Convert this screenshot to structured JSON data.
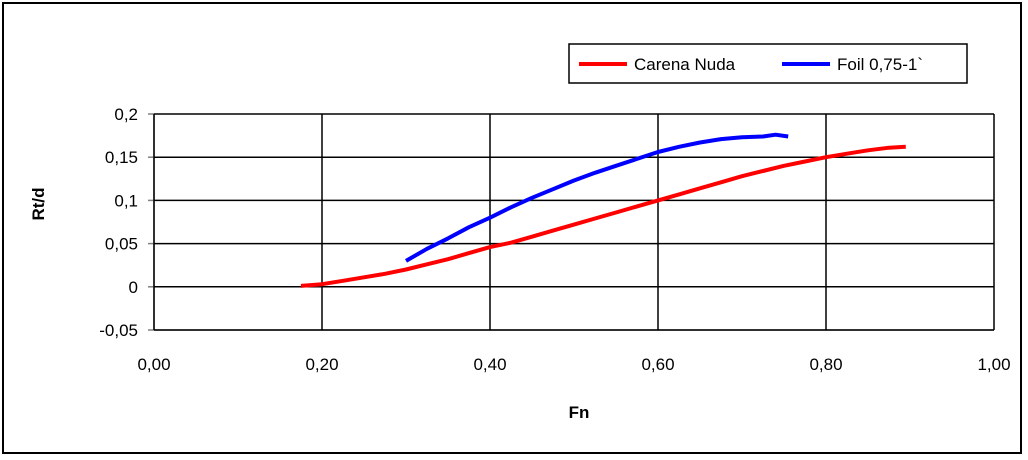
{
  "chart_data": {
    "type": "line",
    "title": "",
    "xlabel": "Fn",
    "ylabel": "Rt/d",
    "xlim": [
      0,
      1
    ],
    "ylim": [
      -0.05,
      0.2
    ],
    "x_ticks": [
      0,
      0.2,
      0.4,
      0.6,
      0.8,
      1.0
    ],
    "x_tick_labels": [
      "0,00",
      "0,20",
      "0,40",
      "0,60",
      "0,80",
      "1,00"
    ],
    "y_ticks": [
      -0.05,
      0,
      0.05,
      0.1,
      0.15,
      0.2
    ],
    "y_tick_labels": [
      "-0,05",
      "0",
      "0,05",
      "0,1",
      "0,15",
      "0,2"
    ],
    "grid": "major",
    "legend_position": "top-right",
    "series": [
      {
        "name": "Carena Nuda",
        "color": "#ff0000",
        "x": [
          0.175,
          0.2,
          0.225,
          0.25,
          0.275,
          0.3,
          0.325,
          0.35,
          0.375,
          0.4,
          0.425,
          0.45,
          0.475,
          0.5,
          0.525,
          0.55,
          0.575,
          0.6,
          0.625,
          0.65,
          0.675,
          0.7,
          0.725,
          0.75,
          0.775,
          0.8,
          0.825,
          0.85,
          0.875,
          0.895
        ],
        "y": [
          0.001,
          0.003,
          0.007,
          0.011,
          0.015,
          0.02,
          0.026,
          0.032,
          0.039,
          0.046,
          0.051,
          0.058,
          0.065,
          0.072,
          0.079,
          0.086,
          0.093,
          0.1,
          0.107,
          0.114,
          0.121,
          0.128,
          0.134,
          0.14,
          0.145,
          0.15,
          0.154,
          0.158,
          0.161,
          0.162
        ]
      },
      {
        "name": "Foil 0,75-1`",
        "color": "#0000ff",
        "x": [
          0.3,
          0.325,
          0.35,
          0.375,
          0.4,
          0.425,
          0.45,
          0.475,
          0.5,
          0.525,
          0.55,
          0.575,
          0.6,
          0.625,
          0.65,
          0.675,
          0.7,
          0.725,
          0.74,
          0.755
        ],
        "y": [
          0.03,
          0.044,
          0.056,
          0.069,
          0.08,
          0.092,
          0.103,
          0.113,
          0.123,
          0.132,
          0.14,
          0.148,
          0.156,
          0.162,
          0.167,
          0.171,
          0.173,
          0.174,
          0.176,
          0.174
        ]
      }
    ]
  }
}
